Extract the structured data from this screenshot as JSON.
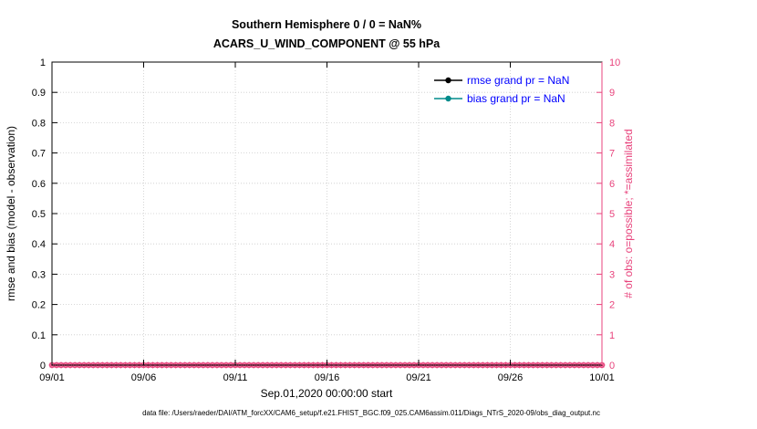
{
  "figure": {
    "caption": "data file: /Users/raeder/DAI/ATM_forcXX/CAM6_setup/f.e21.FHIST_BGC.f09_025.CAM6assim.011/Diags_NTrS_2020-09/obs_diag_output.nc"
  },
  "chart_data": {
    "type": "line",
    "title": "Southern Hemisphere 0 / 0 = NaN%",
    "subtitle": "ACARS_U_WIND_COMPONENT @ 55 hPa",
    "xlabel": "Sep.01,2020 00:00:00 start",
    "ylabel_left": "rmse and bias (model - observation)",
    "ylabel_right": "# of obs: o=possible; *=assimilated",
    "x_tick_labels": [
      "09/01",
      "09/06",
      "09/11",
      "09/16",
      "09/21",
      "09/26",
      "10/01"
    ],
    "y_ticks_left": [
      "0",
      "0.1",
      "0.2",
      "0.3",
      "0.4",
      "0.5",
      "0.6",
      "0.7",
      "0.8",
      "0.9",
      "1"
    ],
    "y_ticks_right": [
      "0",
      "1",
      "2",
      "3",
      "4",
      "5",
      "6",
      "7",
      "8",
      "9",
      "10"
    ],
    "ylim_left": [
      0,
      1
    ],
    "ylim_right": [
      0,
      10
    ],
    "grid": true,
    "legend_position": "top-right-inside",
    "legend_text_color": "#0000ff",
    "legend": [
      {
        "label": "rmse grand pr = NaN",
        "line_color": "#000000",
        "marker": "filled-circle"
      },
      {
        "label": "bias grand pr = NaN",
        "line_color": "#008b8b",
        "marker": "filled-circle"
      }
    ],
    "series": [
      {
        "name": "rmse",
        "values_all": "NaN",
        "plotted": false
      },
      {
        "name": "bias",
        "values_all": "NaN",
        "plotted": false
      },
      {
        "name": "obs_possible",
        "marker": "o",
        "color": "#e8437c",
        "constant_value": 0,
        "n_points": 121
      },
      {
        "name": "obs_assimilated",
        "marker": "*",
        "color": "#e8437c",
        "constant_value": 0,
        "n_points": 121
      }
    ],
    "colors": {
      "obs_axis": "#e8437c",
      "grid": "#cccccc"
    }
  }
}
